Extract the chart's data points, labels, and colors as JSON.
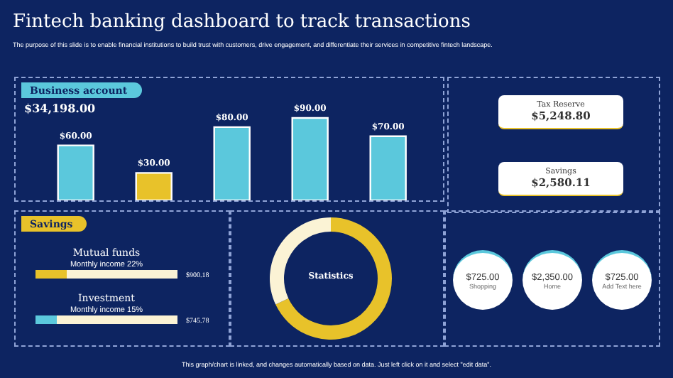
{
  "chart_data": [
    {
      "type": "other",
      "title": "Fintech banking dashboard to track transactions",
      "subtitle": "The purpose of this slide is to enable financial institutions to build trust with customers, drive engagement, and differentiate their services in competitive fintech landscape.",
      "annotations": [
        "This graph/chart is linked, and changes automatically based on data. Just left click on it and select \"edit data\"."
      ]
    },
    {
      "type": "bar",
      "title": "Business account",
      "subtitle": "$34,198.00",
      "categories": [
        null,
        null,
        null,
        null,
        null
      ],
      "values": [
        60,
        30,
        80,
        90,
        70
      ],
      "colors": [
        "#5bc8dc",
        "#e8c22a",
        "#5bc8dc",
        "#5bc8dc",
        "#5bc8dc"
      ],
      "value_labels": [
        "$60.00",
        "$30.00",
        "$80.00",
        "$90.00",
        "$70.00"
      ]
    },
    {
      "type": "other",
      "categories": [
        "Tax Reserve",
        "Savings"
      ],
      "value_labels": [
        "$5,248.80",
        "$2,580.11"
      ]
    },
    {
      "type": "bar",
      "orientation": "horizontal",
      "title": "Savings",
      "categories": [
        "Mutual funds",
        "Investment"
      ],
      "values": [
        22,
        15
      ],
      "colors": [
        "#e8c22a",
        "#5bc8dc"
      ],
      "xlim": [
        0,
        100
      ],
      "tick_labels": false,
      "value_labels": [
        "Monthly  income  22%",
        "Monthly income 15%"
      ],
      "annotations": [
        "$900.18",
        "$745.78"
      ]
    },
    {
      "type": "donut",
      "title": "Statistics",
      "categories": [
        null,
        null
      ],
      "values": [
        68,
        32
      ],
      "colors": [
        "#e8c22a",
        "#fbf3d5"
      ]
    },
    {
      "type": "other",
      "categories": [
        "Shopping",
        "Home",
        "Add Text here"
      ],
      "value_labels": [
        "$725.00",
        "$2,350.00",
        "$725.00"
      ]
    }
  ]
}
